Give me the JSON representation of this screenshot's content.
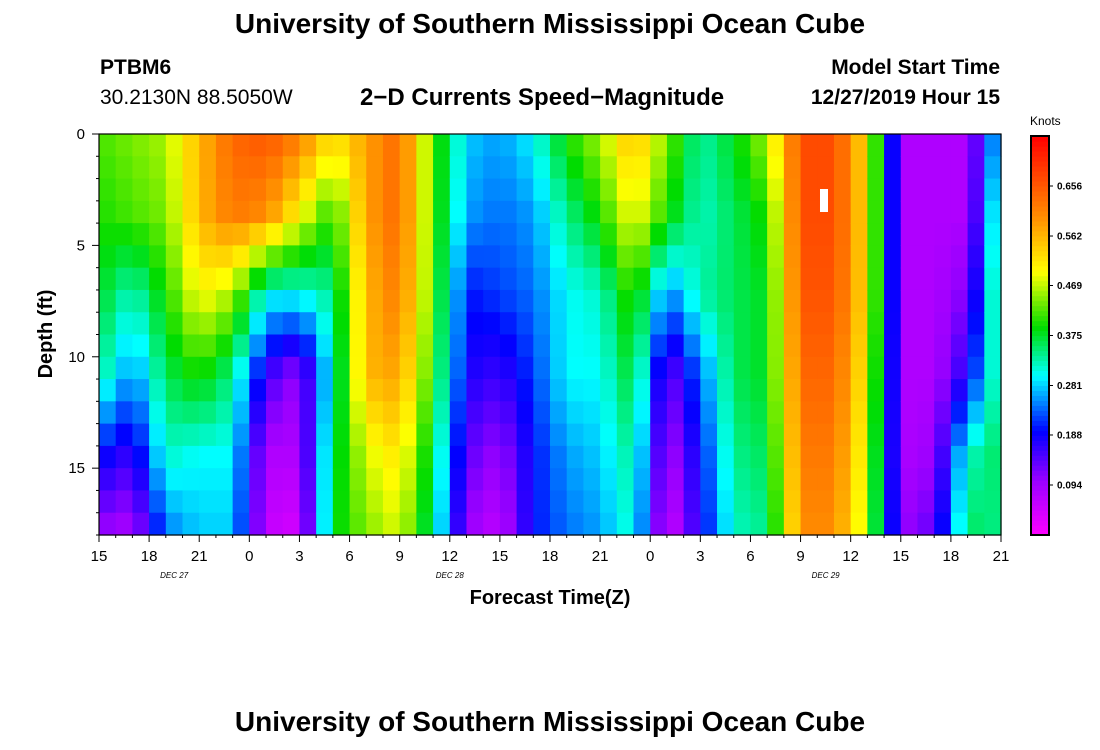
{
  "header": {
    "title": "University of Southern Mississippi Ocean Cube",
    "station_id": "PTBM6",
    "station_coords": "30.2130N 88.5050W",
    "plot_title": "2−D Currents Speed−Magnitude",
    "model_start_label": "Model Start Time",
    "model_start_time": "12/27/2019 Hour 15"
  },
  "footer": {
    "title": "University of Southern Mississippi Ocean Cube"
  },
  "chart_data": {
    "type": "heatmap",
    "title": "2-D Currents Speed-Magnitude",
    "xlabel": "Forecast Time(Z)",
    "ylabel": "Depth (ft)",
    "x_range_hours": [
      0,
      54
    ],
    "x_ticks": [
      {
        "h": 0,
        "label": "15"
      },
      {
        "h": 3,
        "label": "18"
      },
      {
        "h": 6,
        "label": "21"
      },
      {
        "h": 9,
        "label": "0"
      },
      {
        "h": 12,
        "label": "3"
      },
      {
        "h": 15,
        "label": "6"
      },
      {
        "h": 18,
        "label": "9"
      },
      {
        "h": 21,
        "label": "12"
      },
      {
        "h": 24,
        "label": "15"
      },
      {
        "h": 27,
        "label": "18"
      },
      {
        "h": 30,
        "label": "21"
      },
      {
        "h": 33,
        "label": "0"
      },
      {
        "h": 36,
        "label": "3"
      },
      {
        "h": 39,
        "label": "6"
      },
      {
        "h": 42,
        "label": "9"
      },
      {
        "h": 45,
        "label": "12"
      },
      {
        "h": 48,
        "label": "15"
      },
      {
        "h": 51,
        "label": "18"
      },
      {
        "h": 54,
        "label": "21"
      }
    ],
    "date_labels": [
      {
        "h": 4.5,
        "label": "DEC  27"
      },
      {
        "h": 21,
        "label": "DEC  28"
      },
      {
        "h": 43.5,
        "label": "DEC  29"
      }
    ],
    "y_range_ft": [
      0,
      18
    ],
    "y_ticks": [
      0,
      5,
      10,
      15
    ],
    "colorbar": {
      "label": "Knots",
      "range": [
        0,
        0.75
      ],
      "tick_values": [
        0.656,
        0.562,
        0.469,
        0.375,
        0.281,
        0.188,
        0.094
      ],
      "tick_labels": [
        "0.656",
        "0.562",
        "0.469",
        "0.375",
        "0.281",
        "0.188",
        "0.094"
      ]
    },
    "speed_profiles_knots": {
      "note": "Approximate current speed by forecast hour (columns) at depth rows 0, 3.6, 7.2, 10.8, 14.4, 18 ft",
      "hours": [
        0,
        2,
        4,
        6,
        8,
        10,
        12,
        14,
        16,
        18,
        20,
        22,
        24,
        26,
        28,
        30,
        32,
        34,
        36,
        38,
        40,
        42,
        44,
        46,
        48,
        50,
        52,
        54
      ],
      "d0": [
        0.42,
        0.44,
        0.46,
        0.56,
        0.64,
        0.66,
        0.62,
        0.52,
        0.58,
        0.64,
        0.42,
        0.28,
        0.26,
        0.3,
        0.4,
        0.46,
        0.56,
        0.44,
        0.33,
        0.38,
        0.46,
        0.67,
        0.67,
        0.52,
        0.08,
        0.08,
        0.08,
        0.3
      ],
      "d1": [
        0.4,
        0.42,
        0.44,
        0.56,
        0.62,
        0.6,
        0.5,
        0.4,
        0.58,
        0.64,
        0.42,
        0.26,
        0.24,
        0.26,
        0.34,
        0.4,
        0.5,
        0.4,
        0.32,
        0.36,
        0.4,
        0.67,
        0.67,
        0.52,
        0.08,
        0.08,
        0.08,
        0.36
      ],
      "d2": [
        0.38,
        0.32,
        0.4,
        0.5,
        0.46,
        0.3,
        0.3,
        0.34,
        0.56,
        0.62,
        0.42,
        0.2,
        0.22,
        0.24,
        0.3,
        0.32,
        0.42,
        0.24,
        0.33,
        0.36,
        0.38,
        0.66,
        0.66,
        0.52,
        0.08,
        0.08,
        0.12,
        0.38
      ],
      "d3": [
        0.34,
        0.25,
        0.36,
        0.4,
        0.34,
        0.16,
        0.1,
        0.32,
        0.56,
        0.58,
        0.4,
        0.18,
        0.16,
        0.22,
        0.3,
        0.3,
        0.38,
        0.12,
        0.24,
        0.36,
        0.38,
        0.64,
        0.64,
        0.5,
        0.08,
        0.08,
        0.18,
        0.36
      ],
      "d4": [
        0.2,
        0.16,
        0.32,
        0.3,
        0.3,
        0.08,
        0.08,
        0.36,
        0.48,
        0.52,
        0.36,
        0.14,
        0.1,
        0.2,
        0.26,
        0.28,
        0.34,
        0.08,
        0.2,
        0.34,
        0.36,
        0.62,
        0.62,
        0.48,
        0.08,
        0.1,
        0.32,
        0.36
      ],
      "d5": [
        0.1,
        0.08,
        0.24,
        0.28,
        0.28,
        0.06,
        0.04,
        0.38,
        0.44,
        0.48,
        0.34,
        0.1,
        0.06,
        0.2,
        0.24,
        0.26,
        0.32,
        0.04,
        0.18,
        0.32,
        0.34,
        0.6,
        0.6,
        0.46,
        0.1,
        0.14,
        0.36,
        0.34
      ]
    },
    "annotation": "white marker near 10.5 Z on Dec 29 at ~3 ft"
  }
}
